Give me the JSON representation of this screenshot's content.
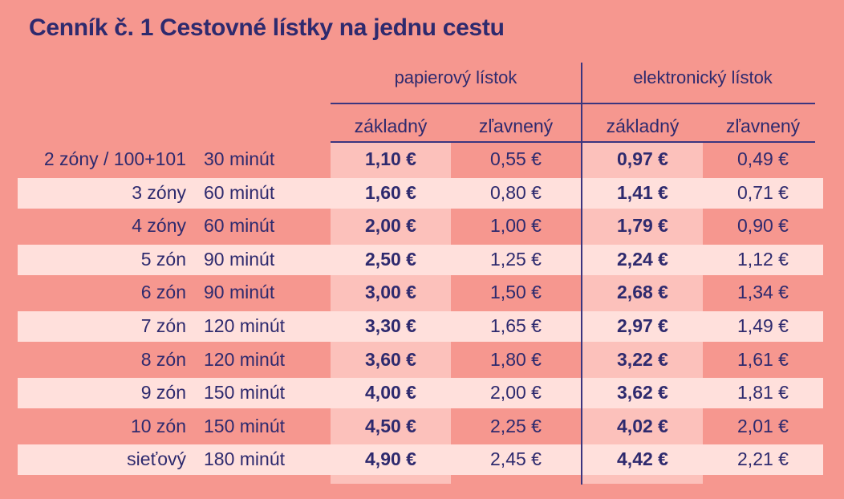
{
  "title": "Cenník č. 1 Cestovné lístky na jednu cestu",
  "groups": {
    "paper": "papierový lístok",
    "electronic": "elektronický lístok"
  },
  "subheads": {
    "paper_basic": "základný",
    "paper_reduced": "zľavnený",
    "el_basic": "základný",
    "el_reduced": "zľavnený"
  },
  "rows": [
    {
      "zone": "2 zóny / 100+101",
      "duration": "30 minút",
      "paper_basic": "1,10 €",
      "paper_reduced": "0,55 €",
      "el_basic": "0,97 €",
      "el_reduced": "0,49 €"
    },
    {
      "zone": "3 zóny",
      "duration": "60 minút",
      "paper_basic": "1,60 €",
      "paper_reduced": "0,80 €",
      "el_basic": "1,41 €",
      "el_reduced": "0,71 €"
    },
    {
      "zone": "4 zóny",
      "duration": "60 minút",
      "paper_basic": "2,00 €",
      "paper_reduced": "1,00 €",
      "el_basic": "1,79 €",
      "el_reduced": "0,90 €"
    },
    {
      "zone": "5 zón",
      "duration": "90 minút",
      "paper_basic": "2,50 €",
      "paper_reduced": "1,25 €",
      "el_basic": "2,24 €",
      "el_reduced": "1,12 €"
    },
    {
      "zone": "6 zón",
      "duration": "90 minút",
      "paper_basic": "3,00 €",
      "paper_reduced": "1,50 €",
      "el_basic": "2,68 €",
      "el_reduced": "1,34 €"
    },
    {
      "zone": "7 zón",
      "duration": "120 minút",
      "paper_basic": "3,30 €",
      "paper_reduced": "1,65 €",
      "el_basic": "2,97 €",
      "el_reduced": "1,49 €"
    },
    {
      "zone": "8 zón",
      "duration": "120 minút",
      "paper_basic": "3,60 €",
      "paper_reduced": "1,80 €",
      "el_basic": "3,22 €",
      "el_reduced": "1,61 €"
    },
    {
      "zone": "9 zón",
      "duration": "150 minút",
      "paper_basic": "4,00 €",
      "paper_reduced": "2,00 €",
      "el_basic": "3,62 €",
      "el_reduced": "1,81 €"
    },
    {
      "zone": "10 zón",
      "duration": "150 minút",
      "paper_basic": "4,50 €",
      "paper_reduced": "2,25 €",
      "el_basic": "4,02 €",
      "el_reduced": "2,01 €"
    },
    {
      "zone": "sieťový",
      "duration": "180 minút",
      "paper_basic": "4,90 €",
      "paper_reduced": "2,45 €",
      "el_basic": "4,42 €",
      "el_reduced": "2,21 €"
    }
  ],
  "colors": {
    "background": "#f6978f",
    "band_light": "#ffe0dc",
    "column_basic": "#fcc1bb",
    "text": "#2e2a6e"
  }
}
